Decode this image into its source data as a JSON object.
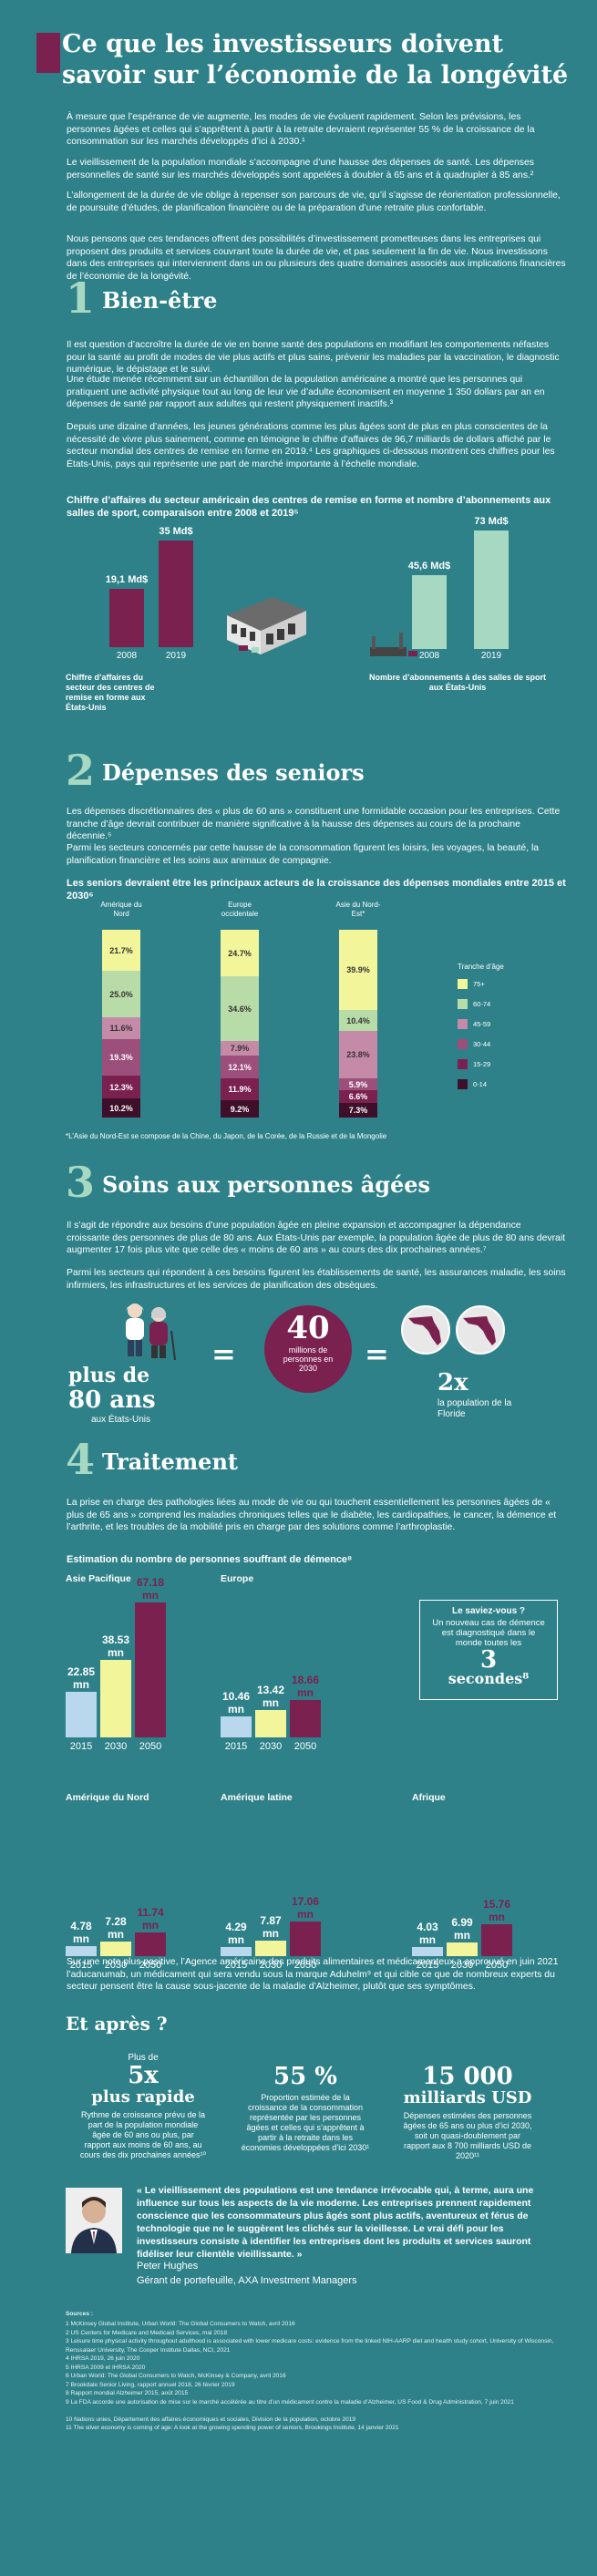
{
  "title": "Ce que les investisseurs doivent savoir sur l’économie de la longévité",
  "intro": [
    "À mesure que l’espérance de vie augmente, les modes de vie évoluent rapidement. Selon les prévisions, les personnes âgées et celles qui s’apprêtent à partir à la retraite devraient représenter 55 % de la croissance de la consommation sur les marchés développés d’ici à 2030.¹",
    "Le vieillissement de la population mondiale s’accompagne d’une hausse des dépenses de santé. Les dépenses personnelles de santé sur les marchés développés sont appelées à doubler à 65 ans et à quadrupler à 85 ans.²",
    "L’allongement de la durée de vie oblige à repenser son parcours de vie, qu’il s’agisse de réorientation professionnelle, de poursuite d’études, de planification financière ou de la préparation d’une retraite plus confortable.",
    "Nous pensons que ces tendances offrent des possibilités d’investissement prometteuses dans les entreprises qui proposent des produits et services couvrant toute la durée de vie, et pas seulement la fin de vie. Nous investissons dans des entreprises qui interviennent dans un ou plusieurs des quatre domaines associés aux implications financières de l’économie de la longévité."
  ],
  "s1": {
    "num": "1",
    "title": "Bien-être",
    "paras": [
      "Il est question d’accroître la durée de vie en bonne santé des populations en modifiant les comportements néfastes pour la santé au profit de modes de vie plus actifs et plus sains, prévenir les maladies par la vaccination, le diagnostic numérique, le dépistage et le suivi.",
      "Une étude menée récemment sur un échantillon de la population américaine a montré que les personnes qui pratiquent une activité physique tout au long de leur vie d’adulte économisent en moyenne 1 350 dollars par an en dépenses de santé par rapport aux adultes qui restent physiquement inactifs.³",
      "Depuis une dizaine d’années, les jeunes générations comme les plus âgées sont de plus en plus conscientes de la nécessité de vivre plus sainement, comme en témoigne le chiffre d’affaires de 96,7 milliards de dollars affiché par le secteur mondial des centres de remise en forme en 2019.⁴ Les graphiques ci-dessous montrent ces chiffres pour les États-Unis, pays qui représente une part de marché importante à l’échelle mondiale."
    ],
    "chart_title": "Chiffre d’affaires du secteur américain des centres de remise en forme et nombre d’abonnements aux salles de sport, comparaison entre 2008 et 2019⁵",
    "left_caption": "Chiffre d’affaires du secteur des centres de remise en forme aux États-Unis",
    "right_caption": "Nombre d’abonnements à des salles de sport aux États-Unis"
  },
  "s2": {
    "num": "2",
    "title": "Dépenses des seniors",
    "paras": [
      "Les dépenses discrétionnaires des « plus de 60 ans » constituent une formidable occasion pour les entreprises. Cette tranche d’âge devrait contribuer de manière significative à la hausse des dépenses au cours de la prochaine décennie.⁵",
      "Parmi les secteurs concernés par cette hausse de la consommation figurent les loisirs, les voyages, la beauté, la planification financière et les soins aux animaux de compagnie."
    ],
    "chart_title": "Les seniors devraient être les principaux acteurs de la croissance des dépenses mondiales entre 2015 et 2030⁶",
    "legend_title": "Tranche d’âge",
    "footnote": "*L’Asie du Nord-Est se compose de la Chine, du Japon, de la Corée, de la Russie et de la Mongolie"
  },
  "s3": {
    "num": "3",
    "title": "Soins aux personnes âgées",
    "paras": [
      "Il s’agit de répondre aux besoins d’une population âgée en pleine expansion et accompagner la dépendance croissante des personnes de plus de 80 ans. Aux États-Unis par exemple, la population âgée de plus de 80 ans devrait augmenter 17 fois plus vite que celle des « moins de 60 ans » au cours des dix prochaines années.⁷",
      "Parmi les secteurs qui répondent à ces besoins figurent les établissements de santé, les assurances maladie, les soins infirmiers, les infrastructures et les services de planification des obsèques."
    ],
    "left_big": "plus de",
    "left_big2": "80 ans",
    "left_small": "aux États-Unis",
    "equals": "=",
    "circle_num": "40",
    "circle_text": "millions de personnes en 2030",
    "right_big": "2x",
    "right_small": "la population de la Floride"
  },
  "s4": {
    "num": "4",
    "title": "Traitement",
    "paras": [
      "La prise en charge des pathologies liées au mode de vie ou qui touchent essentiellement les personnes âgées de « plus de 65 ans » comprend les maladies chroniques telles que le diabète, les cardiopathies, le cancer, la démence et l’arthrite, et les troubles de la mobilité pris en charge par des solutions comme l’arthroplastie."
    ],
    "chart_title": "Estimation du nombre de personnes souffrant de démence⁸",
    "callout_head": "Le saviez-vous ?",
    "callout_text": "Un nouveau cas de démence est diagnostiqué dans le monde toutes les",
    "callout_big": "3",
    "callout_unit": "secondes⁸",
    "after": "Sur une note plus positive, l’Agence américaine des produits alimentaires et médicamenteux a approuvé en juin 2021 l’aducanumab, un médicament qui sera vendu sous la marque Aduhelm⁹ et qui cible ce que de nombreux experts du secteur pensent être la cause sous-jacente de la maladie d’Alzheimer, plutôt que ses symptômes."
  },
  "next": {
    "title": "Et après ?",
    "stats": [
      {
        "pre": "Plus de",
        "big": "5x",
        "big2": "plus rapide",
        "text": "Rythme de croissance prévu de la part de la population mondiale âgée de 60 ans ou plus, par rapport aux moins de 60 ans, au cours des dix prochaines années¹⁰"
      },
      {
        "pre": "",
        "big": "55 %",
        "big2": "",
        "text": "Proportion estimée de la croissance de la consommation représentée par les personnes âgées et celles qui s’apprêtent à partir à la retraite dans les économies développées d’ici 2030¹"
      },
      {
        "pre": "",
        "big": "15 000",
        "big2": "milliards USD",
        "text": "Dépenses estimées des personnes âgées de 65 ans ou plus d’ici 2030, soit un quasi-doublement par rapport aux 8 700 milliards USD de 2020¹¹"
      }
    ]
  },
  "quote": {
    "text": "« Le vieillissement des populations est une tendance irrévocable qui, à terme, aura une influence sur tous les aspects de la vie moderne. Les entreprises prennent rapidement conscience que les consommateurs plus âgés sont plus actifs, aventureux et férus de technologie que ne le suggèrent les clichés sur la vieillesse. Le vrai défi pour les investisseurs consiste à identifier les entreprises dont les produits et services sauront fidéliser leur clientèle vieillissante. »",
    "name": "Peter Hughes",
    "role": "Gérant de portefeuille, AXA Investment Managers"
  },
  "sources": {
    "title": "Sources :",
    "items": [
      "1 McKinsey Global Institute, Urban World: The Global Consumers to Watch, avril 2016",
      "2 US Centers for Medicare and Medicaid Services, mai 2018",
      "3 Leisure time physical activity throughout adulthood is associated with lower medicare costs: evidence from the linked NIH-AARP diet and health study cohort, University of Wisconsin, Renssalaer University, The Cooper Institute Dallas, NCI, 2021",
      "4 IHRSA 2019, 26 juin 2020",
      "5 IHRSA 2009 et IHRSA 2020",
      "6 Urban World: The Global Consumers to Watch, McKinsey & Company, avril 2016",
      "7 Brookdale Senior Living, rapport annuel 2018, 26 février 2019",
      "8 Rapport mondial Alzheimer 2015, août 2015",
      "9 La FDA accorde une autorisation de mise sur le marché accélérée au titre d’un médicament contre la maladie d’Alzheimer, US Food & Drug Administration, 7 juin 2021",
      "10 Nations unies, Département des affaires économiques et sociales, Division de la population, octobre 2019",
      "11 The silver economy is coming of age: A look at the growing spending power of seniors, Brookings Institute, 14 janvier 2021"
    ]
  },
  "colors": {
    "bg": "#2f8189",
    "accent": "#7a2150",
    "mint": "#a7d9c2",
    "yellow": "#f3f59a",
    "lightblue": "#b9d8ee"
  },
  "charts": {
    "revenue": {
      "type": "bar",
      "unit": "Md$",
      "categories": [
        "2008",
        "2019"
      ],
      "values": [
        19.1,
        35
      ],
      "labels": [
        "19,1 Md$",
        "35 Md$"
      ]
    },
    "subscriptions": {
      "type": "bar",
      "categories": [
        "2008",
        "2019"
      ],
      "values": [
        45.6,
        73
      ],
      "labels": [
        "45,6 Md$",
        "73 Md$"
      ]
    },
    "spending": {
      "type": "stacked-bar",
      "regions": [
        "Amérique du Nord",
        "Europe occidentale",
        "Asie du Nord-Est*"
      ],
      "age_groups": [
        "75+",
        "60-74",
        "45-59",
        "30-44",
        "15-29",
        "0-14"
      ],
      "values": [
        [
          21.7,
          25.0,
          11.6,
          19.3,
          12.3,
          10.2
        ],
        [
          24.7,
          34.6,
          7.9,
          12.1,
          11.9,
          9.2
        ],
        [
          39.9,
          10.4,
          23.8,
          5.9,
          6.6,
          7.3
        ]
      ],
      "labels": [
        [
          "21.7%",
          "25.0%",
          "11.6%",
          "19.3%",
          "12.3%",
          "10.2%"
        ],
        [
          "24.7%",
          "34.6%",
          "7.9%",
          "12.1%",
          "11.9%",
          "9.2%"
        ],
        [
          "39.9%",
          "10.4%",
          "23.8%",
          "5.9%",
          "6.6%",
          "7.3%"
        ]
      ]
    },
    "dementia": {
      "type": "bar",
      "years": [
        "2015",
        "2030",
        "2050"
      ],
      "unit": "mn",
      "regions": [
        {
          "name": "Asie Pacifique",
          "values": [
            22.85,
            38.53,
            67.18
          ],
          "labels": [
            "22.85",
            "38.53",
            "67.18"
          ]
        },
        {
          "name": "Europe",
          "values": [
            10.46,
            13.42,
            18.66
          ],
          "labels": [
            "10.46",
            "13.42",
            "18.66"
          ]
        },
        {
          "name": "Amérique du Nord",
          "values": [
            4.78,
            7.28,
            11.74
          ],
          "labels": [
            "4.78",
            "7.28",
            "11.74"
          ]
        },
        {
          "name": "Amérique latine",
          "values": [
            4.29,
            7.87,
            17.06
          ],
          "labels": [
            "4.29",
            "7.87",
            "17.06"
          ]
        },
        {
          "name": "Afrique",
          "values": [
            4.03,
            6.99,
            15.76
          ],
          "labels": [
            "4.03",
            "6.99",
            "15.76"
          ]
        }
      ]
    }
  }
}
